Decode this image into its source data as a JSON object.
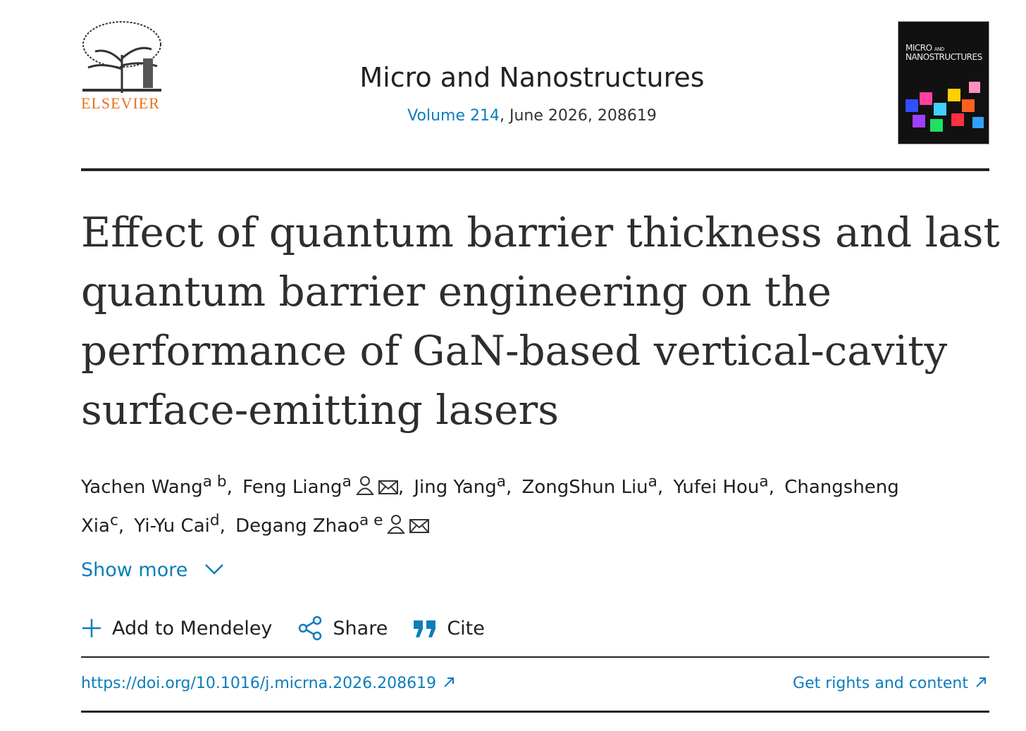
{
  "header": {
    "publisher": "ELSEVIER",
    "journal": "Micro and Nanostructures",
    "volume_link": "Volume 214",
    "volume_rest": ", June 2026, 208619",
    "cover_title": "MICRO",
    "cover_and": "AND",
    "cover_subtitle": "NANOSTRUCTURES"
  },
  "title_lines": [
    "Effect of quantum barrier thickness and last",
    "quantum barrier engineering on the",
    "performance of GaN-based vertical-cavity",
    "surface-emitting lasers"
  ],
  "authors": [
    {
      "name": "Yachen Wang",
      "sup": "a b",
      "sep": ","
    },
    {
      "name": "Feng Liang",
      "sup": "a",
      "sep": ","
    },
    {
      "name": "Jing Yang",
      "sup": "a",
      "sep": ","
    },
    {
      "name": "ZongShun Liu",
      "sup": "a",
      "sep": ","
    },
    {
      "name": "Yufei Hou",
      "sup": "a",
      "sep": ","
    },
    {
      "name": "Changsheng Xia",
      "sup": "c",
      "sep": ","
    },
    {
      "name": "Yi-Yu Cai",
      "sup": "d",
      "sep": ","
    },
    {
      "name": "Degang Zhao",
      "sup": "a e"
    }
  ],
  "show_more": "Show more",
  "actions": [
    "Add to Mendeley",
    "Share",
    "Cite"
  ],
  "doi": "https://doi.org/10.1016/j.micrna.2026.208619",
  "rights": "Get rights and content"
}
